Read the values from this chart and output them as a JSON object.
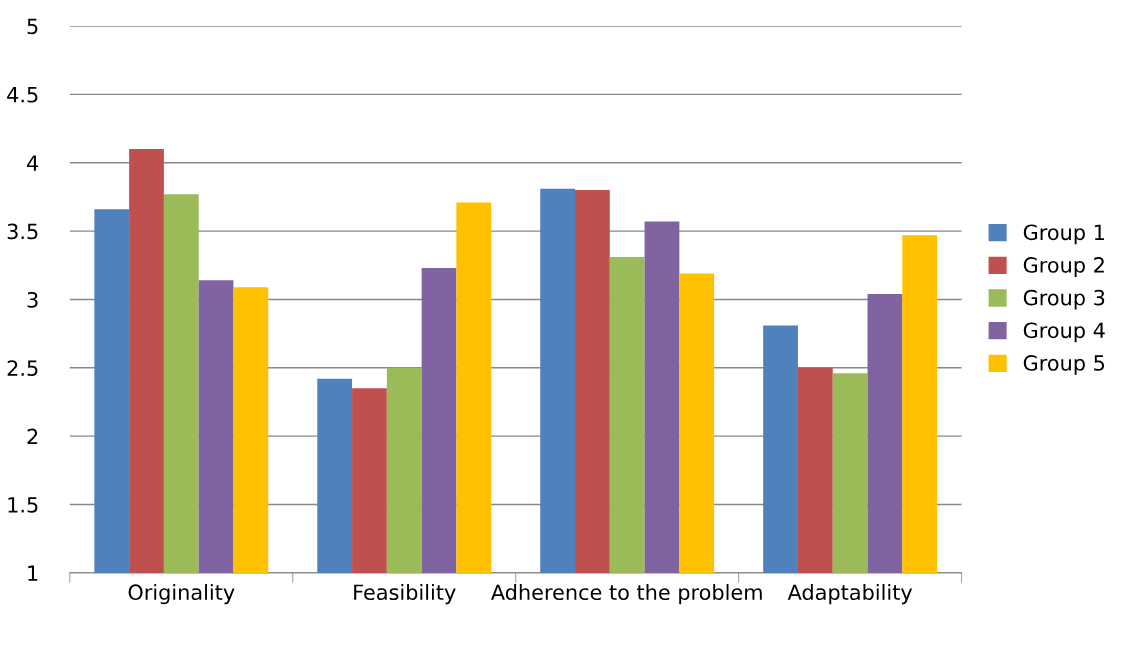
{
  "chart_data": {
    "type": "bar",
    "categories": [
      "Originality",
      "Feasibility",
      "Adherence to the problem",
      "Adaptability"
    ],
    "series": [
      {
        "name": "Group 1",
        "color": "#4f81bd",
        "values": [
          3.66,
          2.42,
          3.81,
          2.81
        ]
      },
      {
        "name": "Group 2",
        "color": "#c0504d",
        "values": [
          4.1,
          2.35,
          3.8,
          2.5
        ]
      },
      {
        "name": "Group 3",
        "color": "#9bbb59",
        "values": [
          3.77,
          2.5,
          3.31,
          2.46
        ]
      },
      {
        "name": "Group 4",
        "color": "#8064a2",
        "values": [
          3.14,
          3.23,
          3.57,
          3.04
        ]
      },
      {
        "name": "Group 5",
        "color": "#ffc000",
        "values": [
          3.09,
          3.71,
          3.19,
          3.47
        ]
      }
    ],
    "ylim": [
      1,
      5
    ],
    "yticks": [
      1,
      1.5,
      2,
      2.5,
      3,
      3.5,
      4,
      4.5,
      5
    ],
    "grid": "y",
    "legend": "right"
  }
}
